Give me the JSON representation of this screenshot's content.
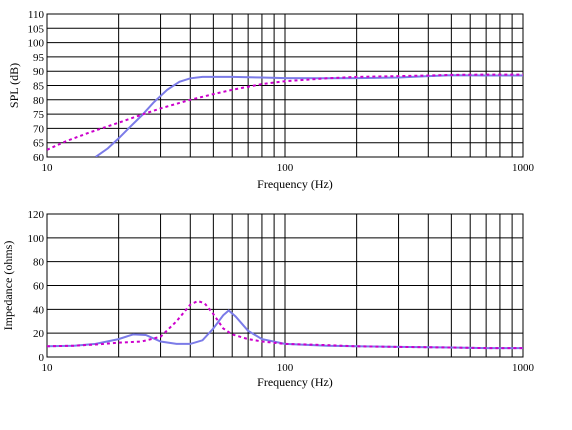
{
  "chart_data": [
    {
      "type": "line",
      "xscale": "log",
      "xlim": [
        10,
        1000
      ],
      "ylim": [
        60,
        110
      ],
      "xlabel": "Frequency (Hz)",
      "ylabel": "SPL (dB)",
      "x_ticks": [
        10,
        100,
        1000
      ],
      "x_tick_labels": [
        "10",
        "100",
        "1000"
      ],
      "y_ticks": [
        60,
        65,
        70,
        75,
        80,
        85,
        90,
        95,
        100,
        105,
        110
      ],
      "y_tick_labels": [
        "60",
        "65",
        "70",
        "75",
        "80",
        "85",
        "90",
        "95",
        "100",
        "105",
        "110"
      ],
      "grid": true,
      "series": [
        {
          "color": "#7b7be8",
          "dash": "solid",
          "x": [
            16,
            18,
            20,
            22,
            25,
            28,
            32,
            36,
            40,
            45,
            50,
            60,
            80,
            100,
            150,
            200,
            300,
            400,
            500,
            700,
            1000
          ],
          "y": [
            60,
            63,
            66.5,
            70,
            74.5,
            79,
            83.5,
            86.3,
            87.5,
            88,
            88,
            88,
            87.8,
            87.6,
            87.5,
            87.6,
            87.8,
            88.3,
            88.6,
            88.5,
            88.5
          ]
        },
        {
          "color": "#cc00cc",
          "dash": "dashed",
          "x": [
            10,
            12,
            15,
            20,
            25,
            30,
            40,
            50,
            60,
            80,
            100,
            150,
            200,
            300,
            400,
            500,
            700,
            1000
          ],
          "y": [
            62.5,
            65.5,
            68.5,
            72,
            74.8,
            77,
            80,
            82,
            83.5,
            85.5,
            86.5,
            87.5,
            88,
            88.3,
            88.5,
            88.7,
            88.8,
            88.8
          ]
        }
      ]
    },
    {
      "type": "line",
      "xscale": "log",
      "xlim": [
        10,
        1000
      ],
      "ylim": [
        0,
        120
      ],
      "xlabel": "Frequency (Hz)",
      "ylabel": "Impedance (ohms)",
      "x_ticks": [
        10,
        100,
        1000
      ],
      "x_tick_labels": [
        "10",
        "100",
        "1000"
      ],
      "y_ticks": [
        0,
        20,
        40,
        60,
        80,
        100,
        120
      ],
      "y_tick_labels": [
        "0",
        "20",
        "40",
        "60",
        "80",
        "100",
        "120"
      ],
      "grid": true,
      "series": [
        {
          "color": "#7b7be8",
          "dash": "solid",
          "x": [
            10,
            13,
            16,
            20,
            23,
            26,
            30,
            35,
            40,
            45,
            50,
            55,
            58,
            62,
            70,
            80,
            100,
            150,
            200,
            300,
            500,
            700,
            1000
          ],
          "y": [
            9,
            9.5,
            11,
            15,
            19,
            18.5,
            13,
            11,
            11,
            14,
            24,
            35,
            39,
            34,
            22,
            15,
            11,
            9.5,
            9,
            8.5,
            8,
            7.5,
            7.5
          ]
        },
        {
          "color": "#cc00cc",
          "dash": "dashed",
          "x": [
            10,
            13,
            16,
            20,
            25,
            30,
            35,
            40,
            43,
            46,
            50,
            55,
            60,
            70,
            80,
            100,
            150,
            200,
            300,
            500,
            700,
            1000
          ],
          "y": [
            9,
            9.5,
            10.5,
            12,
            13,
            17,
            30,
            44,
            47,
            45,
            36,
            24,
            19,
            15,
            13,
            11,
            10,
            9,
            8.5,
            8,
            7.5,
            7.5
          ]
        }
      ]
    }
  ]
}
